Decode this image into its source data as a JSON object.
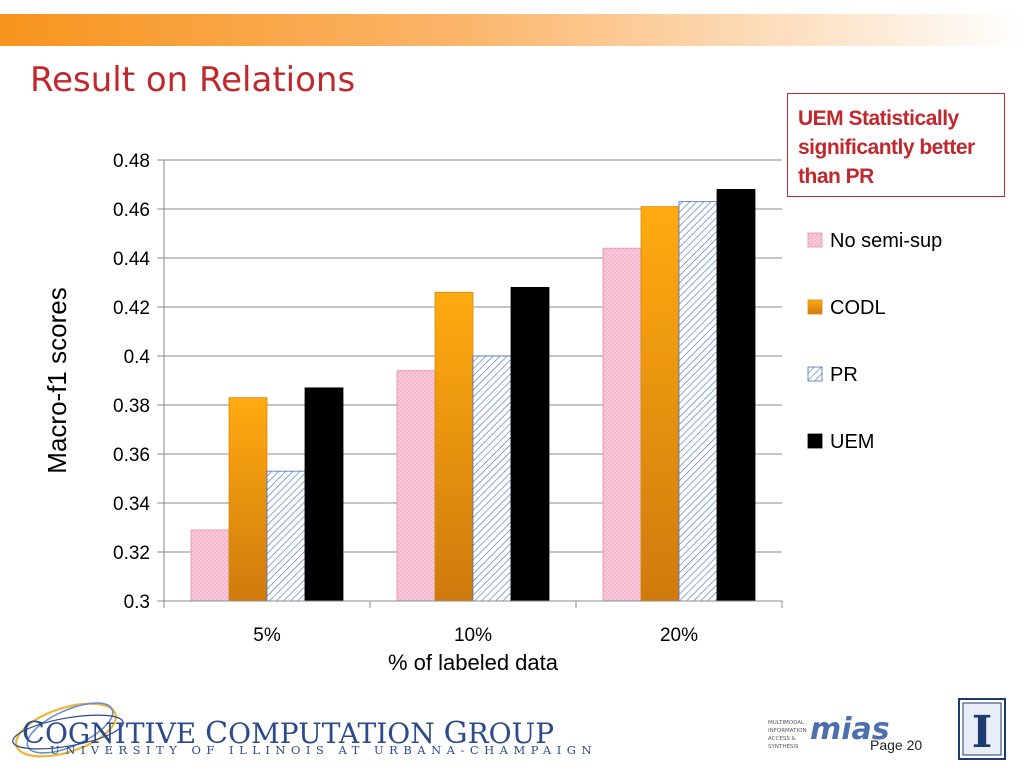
{
  "slide": {
    "title": "Result on Relations",
    "callout": "UEM Statistically significantly better than PR",
    "page_number": "Page 20"
  },
  "footer": {
    "group_name_parts": [
      "C",
      "OGNITIVE ",
      "C",
      "OMPUTATION ",
      "G",
      "ROUP"
    ],
    "university": "UNIVERSITY OF ILLINOIS AT URBANA-CHAMPAIGN",
    "mias_label": "mias",
    "mias_small": "MULTIMODAL INFORMATION ACCESS & SYNTHESIS",
    "illinois_mark": "I"
  },
  "colors": {
    "title_red": "#c0282d",
    "no_semi_sup": "#f7c6d8",
    "codl": "#f7a21a",
    "pr_hatch": "#5a80c8",
    "uem": "#000000",
    "header_orange": "#f7941d"
  },
  "chart_data": {
    "type": "bar",
    "categories": [
      "5%",
      "10%",
      "20%"
    ],
    "series": [
      {
        "name": "No semi-sup",
        "values": [
          0.329,
          0.394,
          0.444
        ]
      },
      {
        "name": "CODL",
        "values": [
          0.383,
          0.426,
          0.461
        ]
      },
      {
        "name": "PR",
        "values": [
          0.353,
          0.4,
          0.463
        ]
      },
      {
        "name": "UEM",
        "values": [
          0.387,
          0.428,
          0.468
        ]
      }
    ],
    "xlabel": "% of labeled data",
    "ylabel": "Macro-f1 scores",
    "ylim": [
      0.3,
      0.48
    ],
    "yticks": [
      "0.3",
      "0.32",
      "0.34",
      "0.36",
      "0.38",
      "0.4",
      "0.42",
      "0.44",
      "0.46",
      "0.48"
    ],
    "grid": true,
    "legend_position": "right"
  }
}
